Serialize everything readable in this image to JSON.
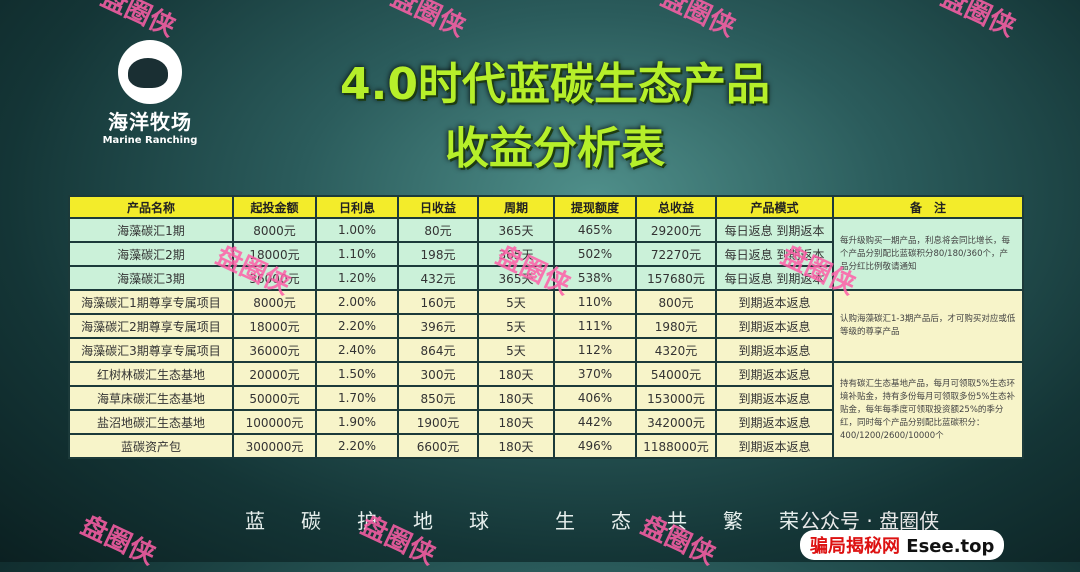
{
  "logo": {
    "cn": "海洋牧场",
    "en": "Marine Ranching"
  },
  "title": {
    "line1": "4.0时代蓝碳生态产品",
    "line2": "收益分析表"
  },
  "table": {
    "headers": [
      "产品名称",
      "起投金额",
      "日利息",
      "日收益",
      "周期",
      "提现额度",
      "总收益",
      "产品模式",
      "备　注"
    ],
    "rows": [
      [
        "海藻碳汇1期",
        "8000元",
        "1.00%",
        "80元",
        "365天",
        "465%",
        "29200元",
        "每日返息 到期返本"
      ],
      [
        "海藻碳汇2期",
        "18000元",
        "1.10%",
        "198元",
        "365天",
        "502%",
        "72270元",
        "每日返息 到期返本"
      ],
      [
        "海藻碳汇3期",
        "36000元",
        "1.20%",
        "432元",
        "365天",
        "538%",
        "157680元",
        "每日返息 到期返本"
      ],
      [
        "海藻碳汇1期尊享专属项目",
        "8000元",
        "2.00%",
        "160元",
        "5天",
        "110%",
        "800元",
        "到期返本返息"
      ],
      [
        "海藻碳汇2期尊享专属项目",
        "18000元",
        "2.20%",
        "396元",
        "5天",
        "111%",
        "1980元",
        "到期返本返息"
      ],
      [
        "海藻碳汇3期尊享专属项目",
        "36000元",
        "2.40%",
        "864元",
        "5天",
        "112%",
        "4320元",
        "到期返本返息"
      ],
      [
        "红树林碳汇生态基地",
        "20000元",
        "1.50%",
        "300元",
        "180天",
        "370%",
        "54000元",
        "到期返本返息"
      ],
      [
        "海草床碳汇生态基地",
        "50000元",
        "1.70%",
        "850元",
        "180天",
        "406%",
        "153000元",
        "到期返本返息"
      ],
      [
        "盐沼地碳汇生态基地",
        "100000元",
        "1.90%",
        "1900元",
        "180天",
        "442%",
        "342000元",
        "到期返本返息"
      ],
      [
        "蓝碳资产包",
        "300000元",
        "2.20%",
        "6600元",
        "180天",
        "496%",
        "1188000元",
        "到期返本返息"
      ]
    ],
    "notes": [
      "每升级购买一期产品，利息将会同比增长，每个产品分别配比蓝碳积分80/180/360个，产品分红比例敬请通知",
      "认购海藻碳汇1-3期产品后，才可购买对应或低等级的尊享产品",
      "持有碳汇生态基地产品，每月可领取5%生态环境补贴金，持有多份每月可领取多份5%生态补贴金，每年每季度可领取投资额25%的季分红，同时每个产品分别配比蓝碳积分：400/1200/2600/10000个"
    ]
  },
  "slogan": [
    "蓝",
    "碳",
    "护",
    "地",
    "球",
    "生",
    "态",
    "共",
    "繁",
    "荣"
  ],
  "watermark": {
    "wechat": "公众号 · 盘圈侠",
    "site_cn": "骗局揭秘网",
    "site_en": "Esee.top",
    "stamp": "盘圈侠"
  },
  "colors": {
    "title": "#b6ef2a",
    "header": "#f3ec2a",
    "row_green": "#cbf1d9",
    "row_yellow": "#f7f4c9",
    "watermark": "#ff5fa8"
  }
}
